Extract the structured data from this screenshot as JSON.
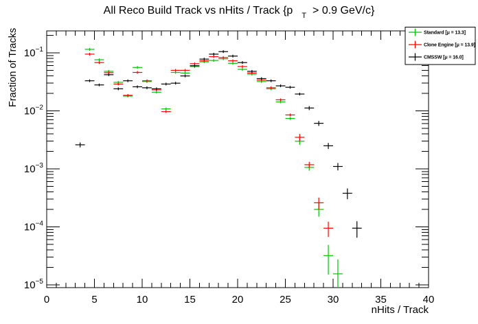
{
  "title": {
    "pre": "All Reco Build Track vs nHits / Track {p",
    "sub": "T",
    "post": "> 0.9 GeV/c}"
  },
  "chart_data": {
    "type": "scatter",
    "style": "root-errorbar-histogram",
    "title": "All Reco Build Track vs nHits / Track {p_T > 0.9 GeV/c}",
    "xlabel": "nHits / Track",
    "ylabel": "Fraction of Tracks",
    "xlim": [
      0,
      40
    ],
    "ylim": [
      9e-06,
      0.24
    ],
    "yscale": "log",
    "grid": false,
    "x_major_ticks": [
      0,
      5,
      10,
      15,
      20,
      25,
      30,
      35,
      40
    ],
    "y_tick_exponents": [
      -1,
      -2,
      -3,
      -4,
      -5
    ],
    "bin_width": 1,
    "legend": {
      "position": "top-right",
      "entries": [
        "Standard  [μ = 13.3]",
        "Clone Engine  [μ = 13.9]",
        "CMSSW  [μ = 16.0]"
      ]
    },
    "series": [
      {
        "name": "Standard",
        "mu": 13.3,
        "color": "#00c400",
        "points": [
          [
            4.5,
            0.115
          ],
          [
            5.5,
            0.076
          ],
          [
            6.5,
            0.048
          ],
          [
            7.5,
            0.031
          ],
          [
            8.5,
            0.018
          ],
          [
            9.5,
            0.056
          ],
          [
            10.5,
            0.032
          ],
          [
            11.5,
            0.021
          ],
          [
            12.5,
            0.0108
          ],
          [
            13.5,
            0.046
          ],
          [
            14.5,
            0.045
          ],
          [
            15.5,
            0.058
          ],
          [
            16.5,
            0.07
          ],
          [
            17.5,
            0.074
          ],
          [
            18.5,
            0.079
          ],
          [
            19.5,
            0.066
          ],
          [
            20.5,
            0.052
          ],
          [
            21.5,
            0.043
          ],
          [
            22.5,
            0.032
          ],
          [
            23.5,
            0.024
          ],
          [
            24.5,
            0.0143
          ],
          [
            25.5,
            0.0074
          ],
          [
            26.5,
            0.003,
            0.0004
          ],
          [
            27.5,
            0.00106,
            0.00013
          ],
          [
            28.5,
            0.0002,
            5e-05
          ],
          [
            29.5,
            3.2e-05,
            1.7e-05
          ],
          [
            30.5,
            1.55e-05,
            1.2e-05
          ]
        ]
      },
      {
        "name": "Clone Engine",
        "mu": 13.9,
        "color": "#ff0000",
        "points": [
          [
            4.5,
            0.095
          ],
          [
            5.5,
            0.068
          ],
          [
            6.5,
            0.0455
          ],
          [
            7.5,
            0.029
          ],
          [
            8.5,
            0.0185
          ],
          [
            9.5,
            0.046
          ],
          [
            10.5,
            0.033
          ],
          [
            11.5,
            0.023
          ],
          [
            12.5,
            0.0097
          ],
          [
            13.5,
            0.05
          ],
          [
            14.5,
            0.05
          ],
          [
            15.5,
            0.065
          ],
          [
            16.5,
            0.073
          ],
          [
            17.5,
            0.086
          ],
          [
            18.5,
            0.083
          ],
          [
            19.5,
            0.073
          ],
          [
            20.5,
            0.058
          ],
          [
            21.5,
            0.045
          ],
          [
            22.5,
            0.034
          ],
          [
            23.5,
            0.025
          ],
          [
            24.5,
            0.0155
          ],
          [
            25.5,
            0.0085
          ],
          [
            26.5,
            0.0035,
            0.0005
          ],
          [
            27.5,
            0.00118,
            0.00014
          ],
          [
            28.5,
            0.00026,
            6e-05
          ],
          [
            29.5,
            9.5e-05,
            2.8e-05
          ]
        ]
      },
      {
        "name": "CMSSW",
        "mu": 16.0,
        "color": "#000000",
        "points": [
          [
            3.5,
            0.0026,
            0.00025
          ],
          [
            4.5,
            0.033
          ],
          [
            5.5,
            0.028
          ],
          [
            6.5,
            0.042
          ],
          [
            7.5,
            0.024
          ],
          [
            8.5,
            0.033
          ],
          [
            9.5,
            0.026
          ],
          [
            10.5,
            0.025
          ],
          [
            11.5,
            0.024
          ],
          [
            12.5,
            0.029
          ],
          [
            13.5,
            0.03
          ],
          [
            14.5,
            0.04
          ],
          [
            15.5,
            0.06
          ],
          [
            16.5,
            0.078
          ],
          [
            17.5,
            0.095
          ],
          [
            18.5,
            0.105
          ],
          [
            19.5,
            0.088
          ],
          [
            20.5,
            0.068
          ],
          [
            21.5,
            0.048
          ],
          [
            22.5,
            0.036
          ],
          [
            23.5,
            0.033
          ],
          [
            24.5,
            0.027
          ],
          [
            25.5,
            0.0255
          ],
          [
            26.5,
            0.0195
          ],
          [
            27.5,
            0.0112,
            0.0009
          ],
          [
            28.5,
            0.0061,
            0.0006
          ],
          [
            29.5,
            0.0025,
            0.0003
          ],
          [
            30.5,
            0.0011,
            0.00016
          ],
          [
            31.5,
            0.00038,
            8e-05
          ],
          [
            32.5,
            9.5e-05,
            3e-05
          ]
        ]
      }
    ]
  }
}
